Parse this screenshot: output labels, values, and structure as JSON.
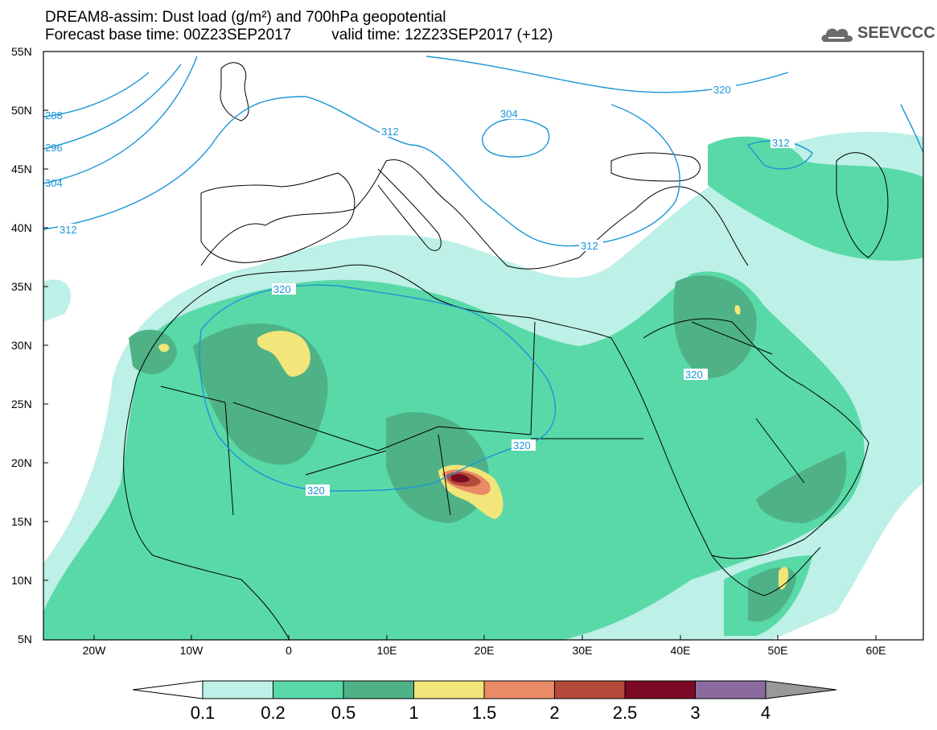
{
  "header": {
    "title_line1": "DREAM8-assim: Dust load (g/m²) and 700hPa geopotential",
    "base_time": "Forecast base time: 00Z23SEP2017",
    "valid_time": "valid time: 12Z23SEP2017 (+12)",
    "logo_text": "SEEVCCC"
  },
  "axes": {
    "lat_labels": [
      "55N",
      "50N",
      "45N",
      "40N",
      "35N",
      "30N",
      "25N",
      "20N",
      "15N",
      "10N",
      "5N"
    ],
    "lon_labels": [
      "20W",
      "10W",
      "0",
      "10E",
      "20E",
      "30E",
      "40E",
      "50E",
      "60E"
    ]
  },
  "contours": {
    "labels": [
      "288",
      "296",
      "304",
      "312",
      "320",
      "320",
      "312",
      "304",
      "312",
      "312",
      "320",
      "320",
      "320",
      "320"
    ]
  },
  "colorbar": {
    "levels": [
      "0.1",
      "0.2",
      "0.5",
      "1",
      "1.5",
      "2",
      "2.5",
      "3",
      "4"
    ],
    "colors": [
      "#ffffff",
      "#bdf0e6",
      "#59d9a8",
      "#4fb287",
      "#f2e57a",
      "#e98b66",
      "#b44a3a",
      "#7d0a25",
      "#8b6a9e",
      "#999999"
    ]
  },
  "colors": {
    "dust_low": "#bdf0e6",
    "dust_mid": "#59d9a8",
    "dust_high": "#4fb287",
    "dust_1": "#f2e57a",
    "dust_15": "#e98b66",
    "dust_2": "#b44a3a",
    "dust_25": "#7d0a25",
    "contour": "#1a95d8"
  }
}
